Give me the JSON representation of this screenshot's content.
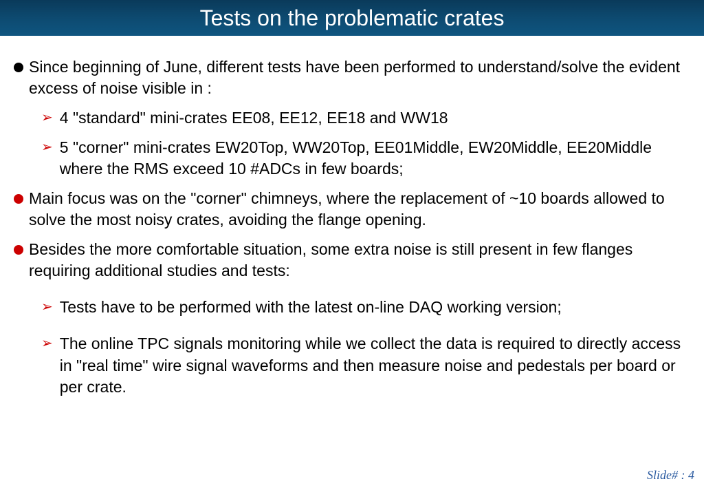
{
  "title": "Tests on the problematic crates",
  "colors": {
    "title_bg_top": "#0a3a5a",
    "title_bg_bottom": "#0f5580",
    "title_text": "#ffffff",
    "bullet_black": "#000000",
    "bullet_red": "#cc0000",
    "chevron": "#cc0000",
    "body_text": "#000000",
    "footer_text": "#2a5aa0"
  },
  "bullets": {
    "b1": "Since beginning of June, different tests have been performed to understand/solve the evident excess of noise visible in :",
    "b1_sub1": "4 \"standard\" mini-crates EE08, EE12, EE18 and WW18",
    "b1_sub2": "5 \"corner\" mini-crates  EW20Top, WW20Top, EE01Middle, EW20Middle, EE20Middle where the RMS exceed 10 #ADCs in few boards;",
    "b2": "Main focus was on the \"corner\" chimneys, where the replacement of ~10 boards allowed to solve the most noisy crates, avoiding the flange opening.",
    "b3": "Besides the more comfortable situation, some extra noise is still present in few flanges requiring additional studies and tests:",
    "b3_sub1": "Tests have to be performed with the latest on-line DAQ working version;",
    "b3_sub2": " The online TPC signals monitoring while we collect the data is required to directly access in \"real time\" wire signal waveforms and then measure noise and pedestals per board or per crate."
  },
  "footer": "Slide# :  4"
}
